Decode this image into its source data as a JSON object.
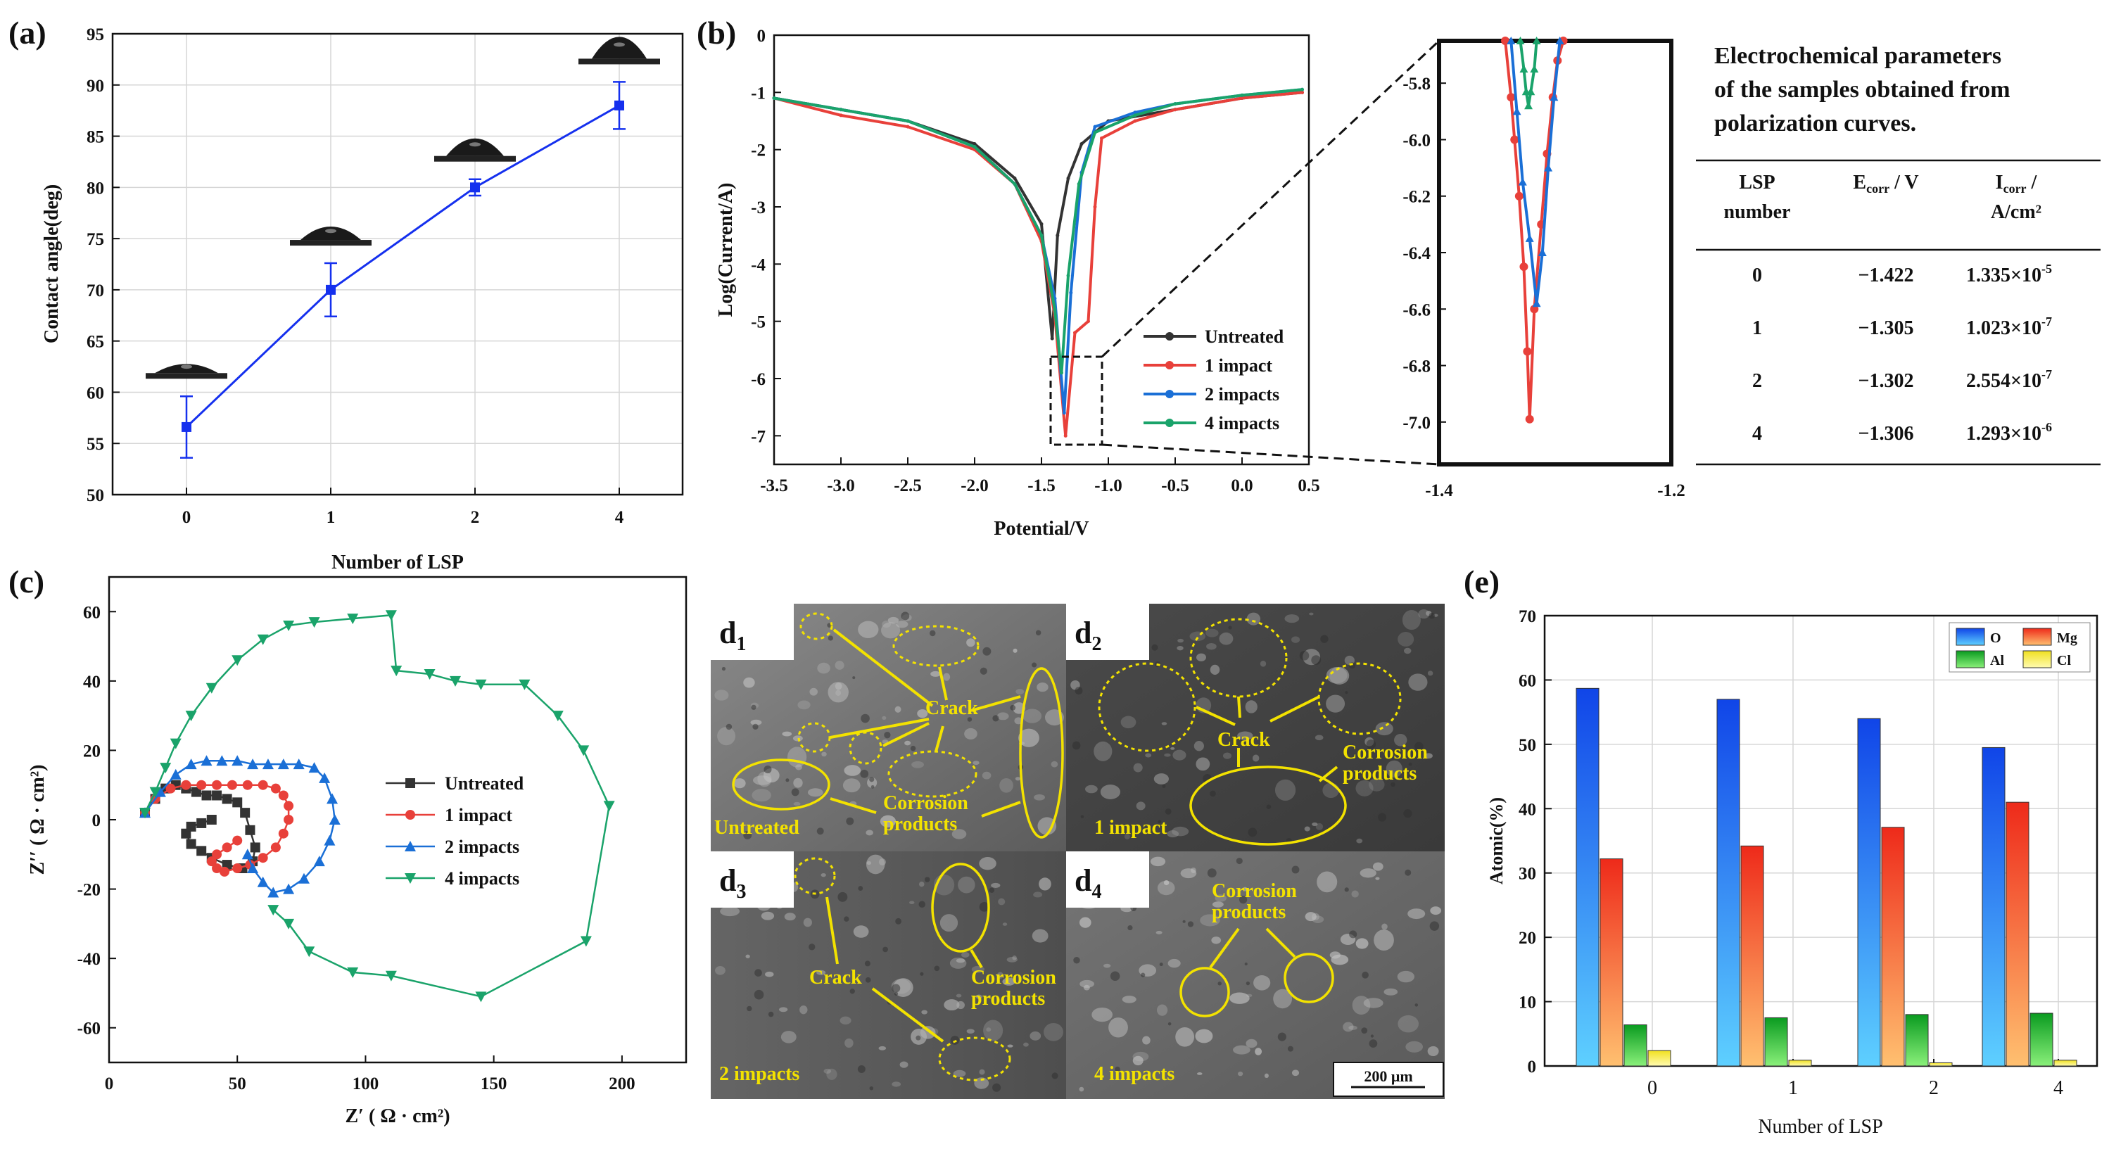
{
  "panel_labels": {
    "a": "(a)",
    "b": "(b)",
    "c": "(c)",
    "e": "(e)"
  },
  "colors": {
    "series_black": "#333333",
    "series_red": "#e8403a",
    "series_blue": "#1a6fd6",
    "series_green": "#1aa36a",
    "line_blue": "#1530ee",
    "grid": "#d6d6d6",
    "sem_yellow": "#f3e200"
  },
  "chart_data": [
    {
      "id": "a",
      "type": "line",
      "title": "",
      "xlabel": "Number of LSP",
      "ylabel": "Contact angle(deg)",
      "categories": [
        "0",
        "1",
        "2",
        "4"
      ],
      "x": [
        0,
        1,
        2,
        4
      ],
      "values": [
        56.6,
        70.0,
        80.0,
        88.0
      ],
      "errors": [
        3.0,
        2.6,
        0.8,
        2.3
      ],
      "ylim": [
        50,
        95
      ],
      "yticks": [
        50,
        55,
        60,
        65,
        70,
        75,
        80,
        85,
        90,
        95
      ],
      "grid": true
    },
    {
      "id": "b",
      "type": "line",
      "xlabel": "Potential/V",
      "ylabel": "Log(Current/A)",
      "xlim": [
        -3.5,
        0.5
      ],
      "ylim": [
        -7.5,
        0
      ],
      "xticks": [
        -3.5,
        -3.0,
        -2.5,
        -2.0,
        -1.5,
        -1.0,
        -0.5,
        0.0,
        0.5
      ],
      "xtick_labels": [
        "-3.5",
        "-3.0",
        "-2.5",
        "-2.0",
        "-1.5",
        "-1.0",
        "-0.5",
        "0.0",
        "0.5"
      ],
      "yticks": [
        0,
        -1,
        -2,
        -3,
        -4,
        -5,
        -6,
        -7
      ],
      "series": [
        {
          "name": "Untreated",
          "color_key": "series_black",
          "x": [
            -3.5,
            -3.0,
            -2.5,
            -2.0,
            -1.7,
            -1.5,
            -1.42,
            -1.38,
            -1.3,
            -1.2,
            -1.0,
            -0.5,
            0.0,
            0.45
          ],
          "y": [
            -1.1,
            -1.3,
            -1.5,
            -1.9,
            -2.5,
            -3.3,
            -5.3,
            -3.5,
            -2.5,
            -1.9,
            -1.5,
            -1.3,
            -1.1,
            -1.0
          ]
        },
        {
          "name": "1 impact",
          "color_key": "series_red",
          "x": [
            -3.5,
            -3.0,
            -2.5,
            -2.0,
            -1.7,
            -1.5,
            -1.4,
            -1.32,
            -1.25,
            -1.15,
            -1.1,
            -1.05,
            -0.8,
            -0.5,
            0.0,
            0.45
          ],
          "y": [
            -1.1,
            -1.4,
            -1.6,
            -2.0,
            -2.6,
            -3.6,
            -4.9,
            -7.0,
            -5.2,
            -5.0,
            -3.0,
            -1.8,
            -1.5,
            -1.3,
            -1.1,
            -1.0
          ]
        },
        {
          "name": "2 impacts",
          "color_key": "series_blue",
          "x": [
            -3.5,
            -3.0,
            -2.5,
            -2.0,
            -1.7,
            -1.5,
            -1.4,
            -1.33,
            -1.28,
            -1.2,
            -1.1,
            -0.8,
            -0.5,
            0.0,
            0.45
          ],
          "y": [
            -1.1,
            -1.3,
            -1.5,
            -1.95,
            -2.6,
            -3.5,
            -4.6,
            -6.6,
            -4.5,
            -2.4,
            -1.6,
            -1.35,
            -1.2,
            -1.05,
            -0.95
          ]
        },
        {
          "name": "4 impacts",
          "color_key": "series_green",
          "x": [
            -3.5,
            -3.0,
            -2.5,
            -2.0,
            -1.7,
            -1.5,
            -1.4,
            -1.35,
            -1.3,
            -1.22,
            -1.1,
            -0.8,
            -0.5,
            0.0,
            0.45
          ],
          "y": [
            -1.1,
            -1.3,
            -1.5,
            -1.95,
            -2.6,
            -3.5,
            -4.8,
            -5.9,
            -4.2,
            -2.6,
            -1.7,
            -1.4,
            -1.2,
            -1.05,
            -0.95
          ]
        }
      ],
      "legend": [
        "Untreated",
        "1 impact",
        "2 impacts",
        "4 impacts"
      ]
    },
    {
      "id": "b_inset",
      "type": "line",
      "xlim": [
        -1.4,
        -1.2
      ],
      "ylim": [
        -7.15,
        -5.65
      ],
      "xticks": [
        -1.4,
        -1.2
      ],
      "xtick_labels": [
        "-1.4",
        "-1.2"
      ],
      "yticks": [
        -5.8,
        -6.0,
        -6.2,
        -6.4,
        -6.6,
        -6.8,
        -7.0
      ],
      "ytick_labels": [
        "-5.8",
        "-6.0",
        "-6.2",
        "-6.4",
        "-6.6",
        "-6.8",
        "-7.0"
      ],
      "series": [
        {
          "name": "1 impact",
          "color_key": "series_red",
          "x": [
            -1.343,
            -1.338,
            -1.335,
            -1.331,
            -1.327,
            -1.324,
            -1.322,
            -1.318,
            -1.312,
            -1.307,
            -1.302,
            -1.298,
            -1.293
          ],
          "y": [
            -5.65,
            -5.85,
            -6.0,
            -6.2,
            -6.45,
            -6.75,
            -6.99,
            -6.6,
            -6.3,
            -6.05,
            -5.85,
            -5.72,
            -5.65
          ]
        },
        {
          "name": "2 impacts",
          "color_key": "series_blue",
          "x": [
            -1.338,
            -1.333,
            -1.328,
            -1.322,
            -1.316,
            -1.311,
            -1.306,
            -1.301,
            -1.296
          ],
          "y": [
            -5.65,
            -5.9,
            -6.15,
            -6.35,
            -6.58,
            -6.4,
            -6.1,
            -5.85,
            -5.65
          ]
        },
        {
          "name": "4 impacts",
          "color_key": "series_green",
          "x": [
            -1.33,
            -1.327,
            -1.325,
            -1.323,
            -1.321,
            -1.318,
            -1.316
          ],
          "y": [
            -5.65,
            -5.75,
            -5.83,
            -5.88,
            -5.83,
            -5.75,
            -5.65
          ]
        }
      ]
    },
    {
      "id": "c",
      "type": "scatter",
      "xlabel": "Z′ ( Ω · cm²)",
      "ylabel": "Z′′ ( Ω · cm²)",
      "xlim": [
        0,
        225
      ],
      "ylim": [
        -70,
        70
      ],
      "xticks": [
        0,
        50,
        100,
        150,
        200
      ],
      "yticks": [
        -60,
        -40,
        -20,
        0,
        20,
        40,
        60
      ],
      "series": [
        {
          "name": "Untreated",
          "color_key": "series_black",
          "x": [
            14,
            18,
            22,
            26,
            30,
            34,
            38,
            42,
            46,
            50,
            53,
            55,
            57,
            56,
            52,
            46,
            40,
            36,
            32,
            30,
            32,
            36,
            40
          ],
          "y": [
            2,
            6,
            9,
            10,
            9,
            8,
            7,
            7,
            6,
            5,
            2,
            -3,
            -8,
            -12,
            -14,
            -13,
            -11,
            -9,
            -7,
            -4,
            -2,
            -1,
            0
          ]
        },
        {
          "name": "1 impact",
          "color_key": "series_red",
          "x": [
            14,
            18,
            24,
            30,
            36,
            42,
            48,
            54,
            60,
            65,
            68,
            70,
            70,
            68,
            65,
            60,
            55,
            50,
            45,
            42,
            40,
            42,
            46,
            50
          ],
          "y": [
            2,
            6,
            9,
            10,
            10,
            10,
            10,
            10,
            10,
            9,
            7,
            4,
            0,
            -4,
            -8,
            -11,
            -13,
            -14,
            -15,
            -14,
            -12,
            -10,
            -8,
            -6
          ]
        },
        {
          "name": "2 impacts",
          "color_key": "series_blue",
          "x": [
            14,
            20,
            26,
            32,
            38,
            44,
            50,
            56,
            62,
            68,
            74,
            80,
            84,
            87,
            88,
            86,
            82,
            76,
            70,
            64,
            60,
            56,
            54
          ],
          "y": [
            2,
            8,
            13,
            16,
            17,
            17,
            17,
            16,
            16,
            16,
            16,
            15,
            12,
            6,
            0,
            -6,
            -12,
            -17,
            -20,
            -21,
            -18,
            -14,
            -10
          ]
        },
        {
          "name": "4 impacts",
          "color_key": "series_green",
          "x": [
            14,
            18,
            22,
            26,
            32,
            40,
            50,
            60,
            70,
            80,
            95,
            110,
            112,
            125,
            135,
            145,
            162,
            175,
            185,
            195,
            186,
            145,
            110,
            95,
            78,
            70,
            64
          ],
          "y": [
            2,
            8,
            15,
            22,
            30,
            38,
            46,
            52,
            56,
            57,
            58,
            59,
            43,
            42,
            40,
            39,
            39,
            30,
            20,
            4,
            -35,
            -51,
            -45,
            -44,
            -38,
            -30,
            -26
          ]
        }
      ],
      "legend": [
        "Untreated",
        "1 impact",
        "2 impacts",
        "4 impacts"
      ]
    },
    {
      "id": "e",
      "type": "bar",
      "xlabel": "Number of LSP",
      "ylabel": "Atomic(%)",
      "categories": [
        "0",
        "1",
        "2",
        "4"
      ],
      "ylim": [
        0,
        70
      ],
      "yticks": [
        0,
        10,
        20,
        30,
        40,
        50,
        60,
        70
      ],
      "series": [
        {
          "name": "O",
          "values": [
            58.7,
            57.0,
            54.0,
            49.5
          ]
        },
        {
          "name": "Mg",
          "values": [
            32.2,
            34.2,
            37.1,
            41.0
          ]
        },
        {
          "name": "Al",
          "values": [
            6.4,
            7.5,
            8.0,
            8.2
          ]
        },
        {
          "name": "Cl",
          "values": [
            2.4,
            0.9,
            0.5,
            0.9
          ]
        }
      ],
      "legend": [
        "O",
        "Mg",
        "Al",
        "Cl"
      ]
    }
  ],
  "table": {
    "title_lines": [
      "Electrochemical parameters",
      "of the samples obtained from",
      "polarization curves."
    ],
    "headers": {
      "lsp": [
        "LSP",
        "number"
      ],
      "ecorr_main": "E",
      "ecorr_sub": "corr",
      "ecorr_unit": " / V",
      "icorr_main": "I",
      "icorr_sub": "corr",
      "icorr_unit": " /",
      "icorr_unit2": "A/cm²"
    },
    "rows": [
      {
        "lsp": "0",
        "ecorr": "−1.422",
        "icorr_base": "1.335×10",
        "icorr_exp": "-5"
      },
      {
        "lsp": "1",
        "ecorr": "−1.305",
        "icorr_base": "1.023×10",
        "icorr_exp": "-7"
      },
      {
        "lsp": "2",
        "ecorr": "−1.302",
        "icorr_base": "2.554×10",
        "icorr_exp": "-7"
      },
      {
        "lsp": "4",
        "ecorr": "−1.306",
        "icorr_base": "1.293×10",
        "icorr_exp": "-6"
      }
    ]
  },
  "sem": {
    "panels": [
      {
        "label": "d",
        "sub": "1",
        "caption": "Untreated"
      },
      {
        "label": "d",
        "sub": "2",
        "caption": "1 impact"
      },
      {
        "label": "d",
        "sub": "3",
        "caption": "2 impacts"
      },
      {
        "label": "d",
        "sub": "4",
        "caption": "4 impacts"
      }
    ],
    "annotations": {
      "crack": "Crack",
      "corrosion": "Corrosion",
      "products": "products"
    },
    "scale_bar": "200 μm"
  }
}
